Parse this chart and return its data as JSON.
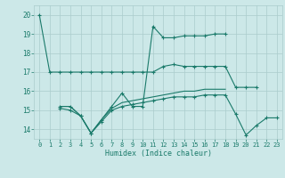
{
  "title": "",
  "xlabel": "Humidex (Indice chaleur)",
  "ylabel": "",
  "xlim": [
    -0.5,
    23.5
  ],
  "ylim": [
    13.5,
    20.5
  ],
  "yticks": [
    14,
    15,
    16,
    17,
    18,
    19,
    20
  ],
  "xticks": [
    0,
    1,
    2,
    3,
    4,
    5,
    6,
    7,
    8,
    9,
    10,
    11,
    12,
    13,
    14,
    15,
    16,
    17,
    18,
    19,
    20,
    21,
    22,
    23
  ],
  "bg_color": "#cce8e8",
  "grid_color": "#aacccc",
  "line_color": "#1a7a6a",
  "series": [
    {
      "x": [
        0,
        1,
        2,
        3,
        4,
        5,
        6,
        7,
        8,
        9,
        10,
        11,
        12,
        13,
        14,
        15,
        16,
        17,
        18,
        19,
        20,
        21
      ],
      "y": [
        20,
        17,
        17,
        17,
        17,
        17,
        17,
        17,
        17,
        17,
        17,
        17,
        17.3,
        17.4,
        17.3,
        17.3,
        17.3,
        17.3,
        17.3,
        16.2,
        16.2,
        16.2
      ],
      "marker": true
    },
    {
      "x": [
        2,
        3,
        4,
        5,
        6,
        7,
        8,
        9,
        10,
        11,
        12,
        13,
        14,
        15,
        16,
        17,
        18
      ],
      "y": [
        15.2,
        15.2,
        14.7,
        13.8,
        14.5,
        15.2,
        15.9,
        15.2,
        15.2,
        19.4,
        18.8,
        18.8,
        18.9,
        18.9,
        18.9,
        19.0,
        19.0
      ],
      "marker": true
    },
    {
      "x": [
        2,
        3,
        4,
        5,
        6,
        7,
        8,
        9,
        10,
        11,
        12,
        13,
        14,
        15,
        16,
        17,
        18
      ],
      "y": [
        15.2,
        15.2,
        14.7,
        13.8,
        14.5,
        15.1,
        15.4,
        15.5,
        15.6,
        15.7,
        15.8,
        15.9,
        16.0,
        16.0,
        16.1,
        16.1,
        16.1
      ],
      "marker": false
    },
    {
      "x": [
        2,
        3,
        4,
        5,
        6,
        7,
        8,
        9,
        10,
        11,
        12,
        13,
        14,
        15,
        16,
        17,
        18,
        19,
        20,
        21,
        22,
        23
      ],
      "y": [
        15.1,
        15.0,
        14.7,
        13.8,
        14.4,
        15.0,
        15.2,
        15.3,
        15.4,
        15.5,
        15.6,
        15.7,
        15.7,
        15.7,
        15.8,
        15.8,
        15.8,
        14.8,
        13.7,
        14.2,
        14.6,
        14.6
      ],
      "marker": true
    }
  ],
  "figsize": [
    3.2,
    2.0
  ],
  "dpi": 100
}
